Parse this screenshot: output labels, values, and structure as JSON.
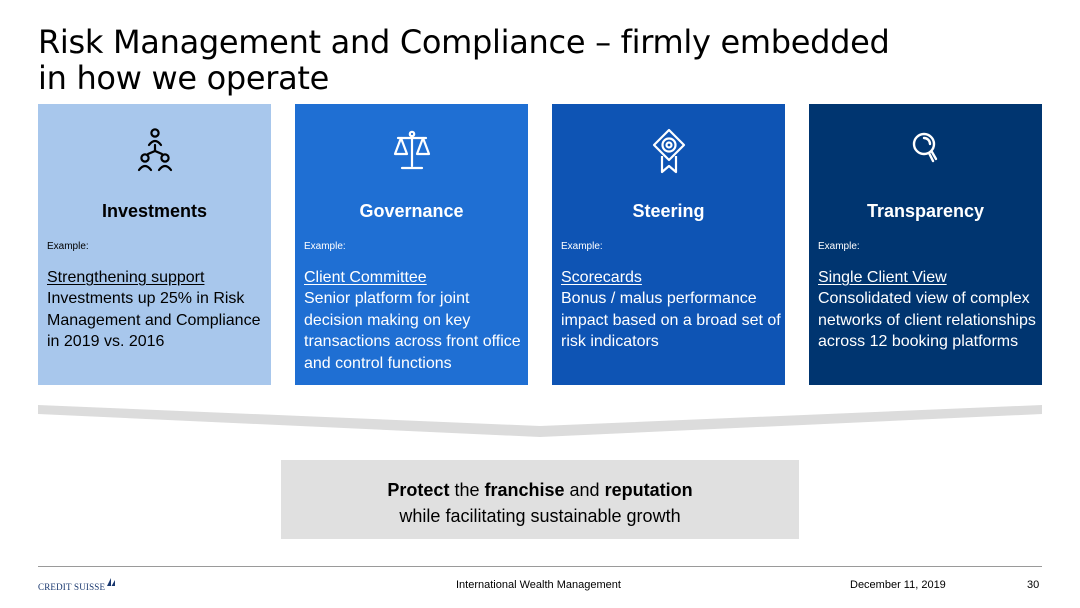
{
  "title": {
    "line1": "Risk Management and Compliance – firmly embedded",
    "line2": "in how we operate"
  },
  "cards": [
    {
      "icon": "people-hierarchy-icon",
      "name": "Investments",
      "example_label": "Example:",
      "headline": "Strengthening support",
      "body": "Investments up 25% in Risk Management and Compliance in 2019 vs. 2016"
    },
    {
      "icon": "scales-icon",
      "name": "Governance",
      "example_label": "Example:",
      "headline": "Client Committee",
      "body": "Senior platform for joint decision making on key transactions across front office and control functions"
    },
    {
      "icon": "award-badge-icon",
      "name": "Steering",
      "example_label": "Example:",
      "headline": "Scorecards",
      "body": "Bonus / malus performance impact based on a broad set of risk indicators"
    },
    {
      "icon": "magnifier-icon",
      "name": "Transparency",
      "example_label": "Example:",
      "headline": "Single Client View",
      "body": "Consolidated view of complex networks of client relationships across 12 booking platforms"
    }
  ],
  "outcome": {
    "w1": "Protect",
    "t1": " the ",
    "w2": "franchise",
    "t2": " and ",
    "w3": "reputation",
    "line2": "while facilitating sustainable growth"
  },
  "footer": {
    "logo_text": "CREDIT SUISSE",
    "center": "International Wealth Management",
    "date": "December 11, 2019",
    "page": "30"
  },
  "colors": {
    "card1": "#a8c7ec",
    "card2": "#1f6fd3",
    "card3": "#0e54b4",
    "card4": "#003570",
    "outcome_bg": "#e0e0e0",
    "brand": "#17366e"
  }
}
